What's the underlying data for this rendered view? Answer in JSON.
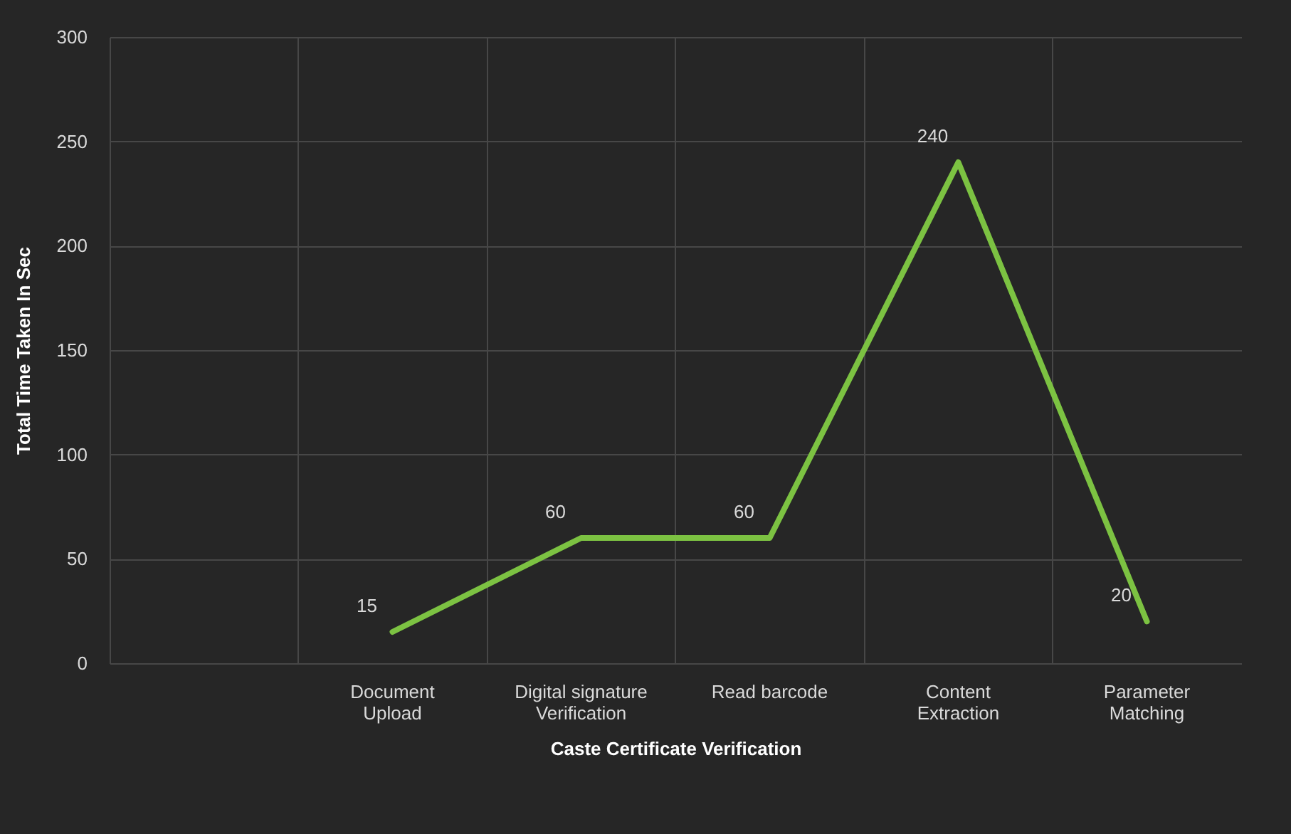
{
  "chart_data": {
    "type": "line",
    "xlabel": "Caste Certificate Verification",
    "ylabel": "Total Time Taken In Sec",
    "categories": [
      null,
      "Document Upload",
      "Digital signature Verification",
      "Read barcode",
      "Content Extraction",
      "Parameter Matching"
    ],
    "series": [
      {
        "color": "#7cc242",
        "values": [
          null,
          15,
          60,
          60,
          240,
          20
        ]
      }
    ],
    "ylim": [
      0,
      300
    ],
    "yticks": [
      0,
      50,
      100,
      150,
      200,
      250,
      300
    ],
    "grid": true,
    "data_labels": true,
    "marker": "none",
    "line_style": "solid"
  }
}
